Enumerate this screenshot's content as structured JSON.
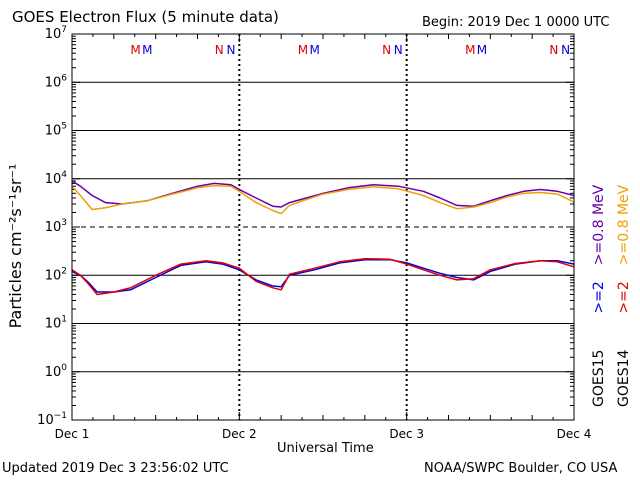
{
  "header": {
    "title": "GOES Electron Flux (5 minute data)",
    "begin": "Begin: 2019 Dec 1 0000 UTC"
  },
  "footer": {
    "updated": "Updated 2019 Dec  3 23:56:02 UTC",
    "credit": "NOAA/SWPC Boulder, CO USA"
  },
  "chart_data": {
    "type": "line",
    "title": "GOES Electron Flux (5 minute data)",
    "xlabel": "Universal Time",
    "ylabel": "Particles cm⁻²s⁻¹sr⁻¹",
    "y_scale": "log",
    "ylim": [
      0.1,
      10000000
    ],
    "xlim": [
      0,
      3
    ],
    "x_ticks": [
      "Dec 1",
      "Dec 2",
      "Dec 3",
      "Dec 4"
    ],
    "y_tick_labels": [
      {
        "value": 0.1,
        "base": "10",
        "exp": "−1"
      },
      {
        "value": 1,
        "base": "10",
        "exp": "0"
      },
      {
        "value": 10,
        "base": "10",
        "exp": "1"
      },
      {
        "value": 100,
        "base": "10",
        "exp": "2"
      },
      {
        "value": 1000,
        "base": "10",
        "exp": "3"
      },
      {
        "value": 10000,
        "base": "10",
        "exp": "4"
      },
      {
        "value": 100000,
        "base": "10",
        "exp": "5"
      },
      {
        "value": 1000000,
        "base": "10",
        "exp": "6"
      },
      {
        "value": 10000000,
        "base": "10",
        "exp": "7"
      }
    ],
    "dashed_threshold": 1000,
    "markers": [
      {
        "x": 0.38,
        "label": "M",
        "color": "#e00000"
      },
      {
        "x": 0.45,
        "label": "M",
        "color": "#0000e0"
      },
      {
        "x": 0.88,
        "label": "N",
        "color": "#e00000"
      },
      {
        "x": 0.95,
        "label": "N",
        "color": "#0000e0"
      },
      {
        "x": 1.38,
        "label": "M",
        "color": "#e00000"
      },
      {
        "x": 1.45,
        "label": "M",
        "color": "#0000e0"
      },
      {
        "x": 1.88,
        "label": "N",
        "color": "#e00000"
      },
      {
        "x": 1.95,
        "label": "N",
        "color": "#0000e0"
      },
      {
        "x": 2.38,
        "label": "M",
        "color": "#e00000"
      },
      {
        "x": 2.45,
        "label": "M",
        "color": "#0000e0"
      },
      {
        "x": 2.88,
        "label": "N",
        "color": "#e00000"
      },
      {
        "x": 2.95,
        "label": "N",
        "color": "#0000e0"
      }
    ],
    "legend": {
      "placement": "right",
      "lines": [
        {
          "text": "GOES15",
          "segments": [
            {
              "text": ">=2",
              "color": "#0000e0"
            },
            {
              "text": ">=0.8 MeV",
              "color": "#6600aa"
            }
          ]
        },
        {
          "text": "GOES14",
          "segments": [
            {
              "text": ">=2",
              "color": "#e00000"
            },
            {
              "text": ">=0.8 MeV",
              "color": "#f0a000"
            }
          ]
        }
      ]
    },
    "series": [
      {
        "name": "GOES15 >=0.8 MeV",
        "color": "#6600aa",
        "x": [
          0,
          0.05,
          0.12,
          0.2,
          0.3,
          0.45,
          0.6,
          0.75,
          0.85,
          0.95,
          1.0,
          1.1,
          1.2,
          1.25,
          1.3,
          1.4,
          1.5,
          1.65,
          1.8,
          1.95,
          2.1,
          2.2,
          2.3,
          2.4,
          2.5,
          2.6,
          2.7,
          2.8,
          2.9,
          3.0
        ],
        "y": [
          9000,
          7000,
          4500,
          3200,
          3000,
          3500,
          5000,
          7000,
          8000,
          7500,
          6000,
          4000,
          2700,
          2600,
          3200,
          4000,
          5000,
          6500,
          7500,
          7000,
          5500,
          4000,
          2800,
          2700,
          3500,
          4500,
          5500,
          6000,
          5500,
          4500
        ]
      },
      {
        "name": "GOES14 >=0.8 MeV",
        "color": "#f0a000",
        "x": [
          0,
          0.05,
          0.12,
          0.2,
          0.3,
          0.45,
          0.6,
          0.75,
          0.85,
          0.95,
          1.0,
          1.1,
          1.2,
          1.25,
          1.3,
          1.4,
          1.5,
          1.65,
          1.8,
          1.95,
          2.1,
          2.2,
          2.3,
          2.4,
          2.5,
          2.6,
          2.7,
          2.8,
          2.9,
          3.0
        ],
        "y": [
          7000,
          4500,
          2300,
          2500,
          3000,
          3500,
          4800,
          6500,
          7200,
          7000,
          5500,
          3200,
          2200,
          1900,
          2800,
          3700,
          4800,
          6000,
          6800,
          6200,
          4500,
          3200,
          2400,
          2600,
          3200,
          4200,
          5000,
          5200,
          4800,
          3300
        ]
      },
      {
        "name": "GOES15 >=2 MeV",
        "color": "#0000e0",
        "x": [
          0,
          0.05,
          0.1,
          0.15,
          0.25,
          0.35,
          0.5,
          0.65,
          0.8,
          0.9,
          1.0,
          1.1,
          1.2,
          1.25,
          1.3,
          1.45,
          1.6,
          1.75,
          1.9,
          2.0,
          2.1,
          2.2,
          2.3,
          2.4,
          2.5,
          2.65,
          2.8,
          2.9,
          3.0
        ],
        "y": [
          120,
          100,
          70,
          45,
          45,
          50,
          90,
          160,
          190,
          170,
          130,
          80,
          60,
          58,
          100,
          130,
          180,
          210,
          210,
          180,
          140,
          110,
          90,
          80,
          120,
          170,
          200,
          200,
          170
        ]
      },
      {
        "name": "GOES14 >=2 MeV",
        "color": "#e00000",
        "x": [
          0,
          0.05,
          0.1,
          0.15,
          0.25,
          0.35,
          0.5,
          0.65,
          0.8,
          0.9,
          1.0,
          1.1,
          1.2,
          1.25,
          1.3,
          1.45,
          1.6,
          1.75,
          1.9,
          2.0,
          2.1,
          2.2,
          2.3,
          2.4,
          2.5,
          2.65,
          2.8,
          2.9,
          3.0
        ],
        "y": [
          130,
          100,
          65,
          40,
          45,
          55,
          100,
          170,
          200,
          180,
          140,
          75,
          55,
          50,
          105,
          140,
          190,
          220,
          215,
          170,
          130,
          100,
          80,
          85,
          130,
          175,
          200,
          190,
          150
        ]
      }
    ]
  }
}
